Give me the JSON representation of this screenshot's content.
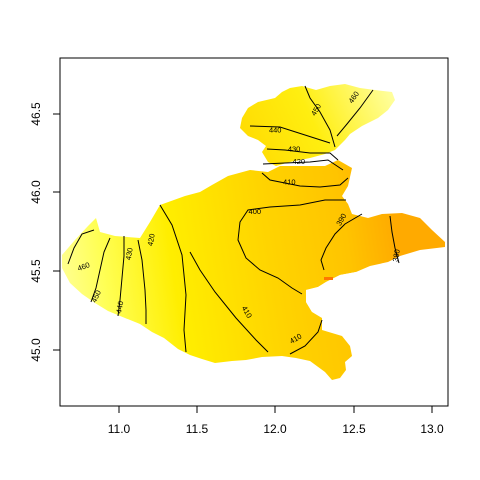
{
  "chart_data": {
    "type": "contour",
    "title": "",
    "xlabel": "",
    "ylabel": "",
    "xlim": [
      10.62,
      13.09
    ],
    "ylim": [
      44.62,
      46.84
    ],
    "x_ticks": [
      "11.0",
      "11.5",
      "12.0",
      "12.5",
      "13.0"
    ],
    "y_ticks": [
      "45.0",
      "45.5",
      "46.0",
      "46.5"
    ],
    "contour_levels": [
      "460",
      "450",
      "440",
      "430",
      "420",
      "410",
      "400",
      "390",
      "380"
    ],
    "contour_labels": [
      {
        "text": "460",
        "level": 460,
        "x": 12.49,
        "y": 46.59,
        "angle": -55
      },
      {
        "text": "450",
        "level": 450,
        "x": 12.25,
        "y": 46.51,
        "angle": -60
      },
      {
        "text": "440",
        "level": 440,
        "x": 11.99,
        "y": 46.38,
        "angle": 0
      },
      {
        "text": "430",
        "level": 430,
        "x": 12.11,
        "y": 46.26,
        "angle": 0
      },
      {
        "text": "420",
        "level": 420,
        "x": 12.14,
        "y": 46.18,
        "angle": 0
      },
      {
        "text": "410",
        "level": 410,
        "x": 12.08,
        "y": 46.05,
        "angle": 0
      },
      {
        "text": "400",
        "level": 400,
        "x": 11.86,
        "y": 45.86,
        "angle": 0
      },
      {
        "text": "390",
        "level": 390,
        "x": 12.41,
        "y": 45.81,
        "angle": -60
      },
      {
        "text": "380",
        "level": 380,
        "x": 12.76,
        "y": 45.58,
        "angle": -80
      },
      {
        "text": "460",
        "level": 460,
        "x": 10.77,
        "y": 45.51,
        "angle": -20
      },
      {
        "text": "450",
        "level": 450,
        "x": 10.85,
        "y": 45.32,
        "angle": -65
      },
      {
        "text": "440",
        "level": 440,
        "x": 11.0,
        "y": 45.25,
        "angle": -80
      },
      {
        "text": "430",
        "level": 430,
        "x": 11.06,
        "y": 45.59,
        "angle": -80
      },
      {
        "text": "420",
        "level": 420,
        "x": 11.2,
        "y": 45.68,
        "angle": -80
      },
      {
        "text": "410",
        "level": 410,
        "x": 11.81,
        "y": 45.22,
        "angle": 60
      },
      {
        "text": "410",
        "level": 410,
        "x": 12.12,
        "y": 45.05,
        "angle": -30
      }
    ],
    "grid": false,
    "legend": "none"
  }
}
